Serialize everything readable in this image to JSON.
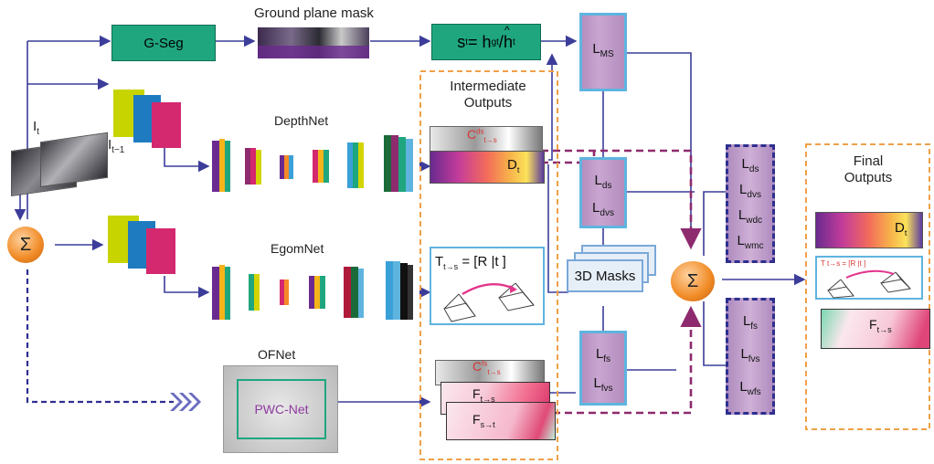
{
  "title_ground_plane_mask": "Ground plane mask",
  "gseg_label": "G-Seg",
  "scale_formula": {
    "s": "s",
    "s_sub": "t",
    "eq": " = h",
    "h_sub": "gt",
    "slash": " / ",
    "hhat": "h",
    "hhat_sub": "t",
    "hat": "^"
  },
  "loss_ms": {
    "L": "L",
    "sub": "MS"
  },
  "intermediate_outputs": {
    "line1": "Intermediate",
    "line2": "Outputs"
  },
  "final_outputs": {
    "line1": "Final",
    "line2": "Outputs"
  },
  "input_frames": {
    "it": "I",
    "it_sub": "t",
    "it1": "I",
    "it1_sub": "t−1"
  },
  "depthnet_label": "DepthNet",
  "egomnet_label": "EgomNet",
  "ofnet_label": "OFNet",
  "pwcnet_label": "PWC-Net",
  "sigma_symbol": "Σ",
  "confidence": {
    "C": "C",
    "sup": "ds",
    "sub": "t→s"
  },
  "confidence_flow": {
    "C": "C",
    "sup": "fs",
    "sub": "t→s"
  },
  "depth_out": {
    "D": "D",
    "sub": "t"
  },
  "pose": {
    "T": "T",
    "sub": "t→s",
    "eq": " = [R |t ]"
  },
  "pose_small": "T t→s = [R |t ]",
  "flow_ts": {
    "F": "F",
    "sub": "t→s"
  },
  "flow_st": {
    "F": "F",
    "sub": "s→t"
  },
  "masks_3d": "3D Masks",
  "losses_depth": [
    {
      "L": "L",
      "sub": "ds"
    },
    {
      "L": "L",
      "sub": "dvs"
    }
  ],
  "losses_flow": [
    {
      "L": "L",
      "sub": "fs"
    },
    {
      "L": "L",
      "sub": "fvs"
    }
  ],
  "losses_right_top": [
    {
      "L": "L",
      "sub": "ds"
    },
    {
      "L": "L",
      "sub": "dvs"
    },
    {
      "L": "L",
      "sub": "wdc"
    },
    {
      "L": "L",
      "sub": "wmc"
    }
  ],
  "losses_right_bottom": [
    {
      "L": "L",
      "sub": "fs"
    },
    {
      "L": "L",
      "sub": "fvs"
    },
    {
      "L": "L",
      "sub": "wfs"
    }
  ],
  "colors": {
    "arrow": "#3c3d9a",
    "dashed_purple": "#8e2a6e",
    "orange_dash": "#f0a04a",
    "green": "#1fa67f",
    "sigma_fill": "#f08a24"
  }
}
